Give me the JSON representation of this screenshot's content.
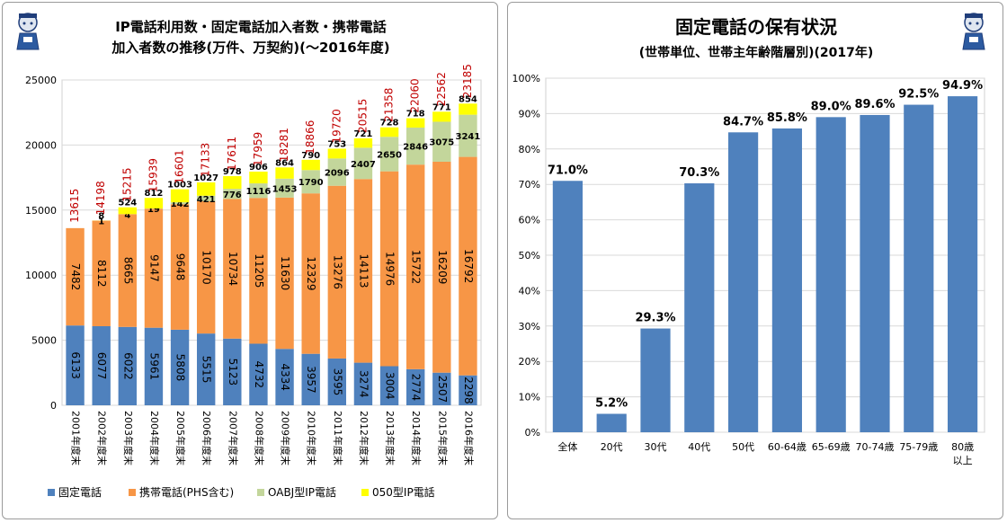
{
  "chart_data": [
    {
      "type": "bar",
      "stacked": true,
      "title_lines": [
        "IP電話利用数・固定電話加入者数・携帯電話",
        "加入者数の推移(万件、万契約)(～2016年度)"
      ],
      "categories": [
        "2001年度末",
        "2002年度末",
        "2003年度末",
        "2004年度末",
        "2005年度末",
        "2006年度末",
        "2007年度末",
        "2008年度末",
        "2009年度末",
        "2010年度末",
        "2011年度末",
        "2012年度末",
        "2013年度末",
        "2014年度末",
        "2015年度末",
        "2016年度末"
      ],
      "ylim": [
        0,
        25000
      ],
      "yticks": [
        0,
        5000,
        10000,
        15000,
        20000,
        25000
      ],
      "grid": true,
      "legend_position": "bottom",
      "series": [
        {
          "name": "固定電話",
          "color": "#4f81bd",
          "values": [
            6133,
            6077,
            6022,
            5961,
            5808,
            5515,
            5123,
            4732,
            4334,
            3957,
            3595,
            3274,
            3004,
            2774,
            2507,
            2298
          ]
        },
        {
          "name": "携帯電話(PHS含む)",
          "color": "#f79646",
          "values": [
            7482,
            8112,
            8665,
            9147,
            9648,
            10170,
            10734,
            11205,
            11630,
            12329,
            13276,
            14113,
            14976,
            15722,
            16209,
            16792
          ]
        },
        {
          "name": "OABJ型IP電話",
          "color": "#c3d69b",
          "values": [
            null,
            1,
            4,
            19,
            142,
            421,
            776,
            1116,
            1453,
            1790,
            2096,
            2407,
            2650,
            2846,
            3075,
            3241
          ]
        },
        {
          "name": "050型IP電話",
          "color": "#ffff00",
          "values": [
            null,
            8,
            524,
            812,
            1003,
            1027,
            978,
            906,
            864,
            790,
            753,
            721,
            728,
            718,
            771,
            854
          ]
        }
      ],
      "totals": [
        13615,
        14198,
        15215,
        15939,
        16601,
        17133,
        17611,
        17959,
        18281,
        18866,
        19720,
        20515,
        21358,
        22060,
        22562,
        23185
      ],
      "total_color": "#c00000"
    },
    {
      "type": "bar",
      "title": "固定電話の保有状況",
      "subtitle": "(世帯単位、世帯主年齢階層別)(2017年)",
      "categories": [
        "全体",
        "20代",
        "30代",
        "40代",
        "50代",
        "60-64歳",
        "65-69歳",
        "70-74歳",
        "75-79歳",
        "80歳 以上"
      ],
      "values": [
        71.0,
        5.2,
        29.3,
        70.3,
        84.7,
        85.8,
        89.0,
        89.6,
        92.5,
        94.9
      ],
      "value_labels": [
        "71.0%",
        "5.2%",
        "29.3%",
        "70.3%",
        "84.7%",
        "85.8%",
        "89.0%",
        "89.6%",
        "92.5%",
        "94.9%"
      ],
      "ylim": [
        0,
        100
      ],
      "yticks": [
        "0%",
        "10%",
        "20%",
        "30%",
        "40%",
        "50%",
        "60%",
        "70%",
        "80%",
        "90%",
        "100%"
      ],
      "grid": true,
      "bar_color": "#4f81bd"
    }
  ]
}
